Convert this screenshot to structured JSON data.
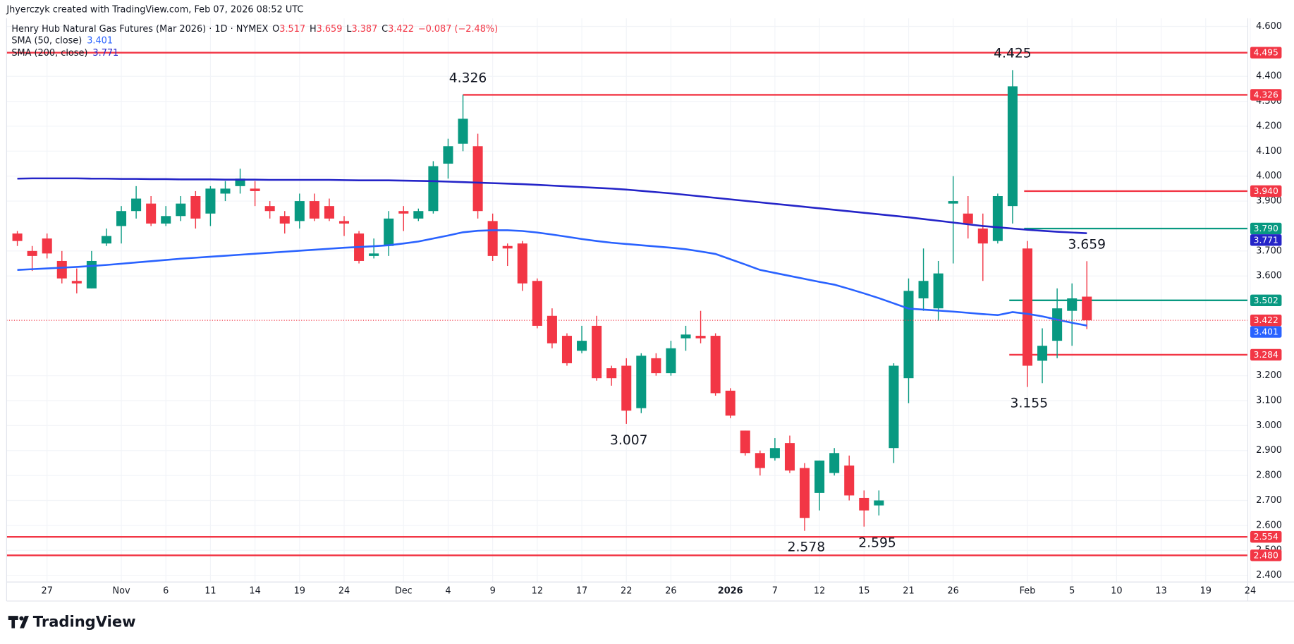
{
  "header": {
    "credit": "Jhyerczyk created with TradingView.com, Feb 07, 2026 08:52 UTC"
  },
  "brand": "TradingView",
  "chart_data": {
    "type": "candlestick",
    "title": "Henry Hub Natural Gas Futures (Mar 2026) · 1D · NYMEX",
    "ohlc_labels": [
      "O",
      "H",
      "L",
      "C"
    ],
    "change": "−0.087 (−2.48%)",
    "up_color": "#089981",
    "down_color": "#f23645",
    "categories": [
      null,
      null,
      "27",
      null,
      null,
      null,
      null,
      "Nov",
      null,
      null,
      "6",
      null,
      null,
      "11",
      null,
      null,
      "14",
      null,
      null,
      "19",
      null,
      null,
      "24",
      null,
      null,
      null,
      "Dec",
      null,
      null,
      "4",
      null,
      null,
      "9",
      null,
      null,
      "12",
      null,
      null,
      "17",
      null,
      null,
      "22",
      null,
      null,
      "26",
      null,
      null,
      null,
      "2026",
      null,
      null,
      "7",
      null,
      null,
      "12",
      null,
      null,
      "15",
      null,
      null,
      "21",
      null,
      null,
      "26",
      null,
      null,
      null,
      null,
      "Feb",
      null,
      null,
      "5",
      null,
      null,
      "10",
      null,
      null,
      "13",
      null,
      null,
      "19",
      null,
      null,
      "24"
    ],
    "open": [
      3.77,
      3.7,
      3.75,
      3.66,
      3.58,
      3.55,
      3.73,
      3.8,
      3.86,
      3.89,
      3.81,
      3.84,
      3.92,
      3.85,
      3.93,
      3.96,
      3.95,
      3.88,
      3.84,
      3.82,
      3.9,
      3.88,
      3.82,
      3.77,
      3.68,
      3.72,
      3.86,
      3.83,
      3.86,
      4.05,
      4.13,
      4.12,
      3.82,
      3.72,
      3.73,
      3.58,
      3.44,
      3.36,
      3.3,
      3.4,
      3.23,
      3.24,
      3.07,
      3.27,
      3.21,
      3.35,
      3.36,
      3.36,
      3.14,
      2.98,
      2.89,
      2.87,
      2.93,
      2.83,
      2.73,
      2.81,
      2.84,
      2.71,
      2.68,
      2.91,
      3.19,
      3.51,
      3.47,
      3.89,
      3.85,
      3.79,
      3.74,
      3.88,
      3.71,
      3.26,
      3.34,
      3.46,
      3.517,
      null,
      null,
      null,
      null,
      null,
      null,
      null,
      null,
      null,
      null,
      null
    ],
    "high": [
      3.78,
      3.72,
      3.77,
      3.7,
      3.63,
      3.7,
      3.79,
      3.88,
      3.96,
      3.92,
      3.88,
      3.92,
      3.94,
      3.96,
      3.98,
      4.03,
      3.98,
      3.9,
      3.86,
      3.93,
      3.93,
      3.91,
      3.84,
      3.78,
      3.75,
      3.86,
      3.88,
      3.87,
      4.06,
      4.15,
      4.326,
      4.17,
      3.85,
      3.73,
      3.74,
      3.59,
      3.47,
      3.37,
      3.4,
      3.44,
      3.24,
      3.27,
      3.29,
      3.29,
      3.34,
      3.4,
      3.46,
      3.37,
      3.15,
      2.98,
      2.9,
      2.95,
      2.96,
      2.85,
      2.86,
      2.91,
      2.88,
      2.74,
      2.74,
      3.25,
      3.59,
      3.71,
      3.66,
      4.0,
      3.92,
      3.85,
      3.93,
      4.425,
      3.74,
      3.39,
      3.55,
      3.57,
      3.659,
      null,
      null,
      null,
      null,
      null,
      null,
      null,
      null,
      null,
      null,
      null
    ],
    "low": [
      3.72,
      3.62,
      3.67,
      3.57,
      3.53,
      3.55,
      3.72,
      3.73,
      3.83,
      3.8,
      3.8,
      3.82,
      3.79,
      3.8,
      3.9,
      3.93,
      3.88,
      3.83,
      3.77,
      3.79,
      3.82,
      3.82,
      3.76,
      3.65,
      3.67,
      3.68,
      3.78,
      3.82,
      3.85,
      3.99,
      4.1,
      3.83,
      3.66,
      3.64,
      3.54,
      3.39,
      3.31,
      3.24,
      3.29,
      3.18,
      3.16,
      3.007,
      3.05,
      3.2,
      3.2,
      3.3,
      3.33,
      3.12,
      3.03,
      2.88,
      2.8,
      2.86,
      2.81,
      2.578,
      2.66,
      2.8,
      2.7,
      2.595,
      2.64,
      2.85,
      3.09,
      3.46,
      3.42,
      3.65,
      3.75,
      3.58,
      3.73,
      3.81,
      3.155,
      3.17,
      3.27,
      3.32,
      3.387,
      null,
      null,
      null,
      null,
      null,
      null,
      null,
      null,
      null,
      null,
      null
    ],
    "close": [
      3.74,
      3.68,
      3.69,
      3.59,
      3.57,
      3.66,
      3.76,
      3.86,
      3.91,
      3.81,
      3.84,
      3.89,
      3.83,
      3.95,
      3.95,
      3.99,
      3.94,
      3.86,
      3.81,
      3.9,
      3.83,
      3.83,
      3.81,
      3.66,
      3.69,
      3.83,
      3.85,
      3.86,
      4.04,
      4.12,
      4.23,
      3.86,
      3.68,
      3.71,
      3.57,
      3.4,
      3.33,
      3.25,
      3.34,
      3.19,
      3.19,
      3.06,
      3.28,
      3.21,
      3.31,
      3.365,
      3.35,
      3.13,
      3.04,
      2.89,
      2.83,
      2.91,
      2.82,
      2.63,
      2.86,
      2.89,
      2.72,
      2.66,
      2.7,
      3.24,
      3.54,
      3.58,
      3.61,
      3.9,
      3.81,
      3.73,
      3.92,
      4.36,
      3.24,
      3.32,
      3.47,
      3.51,
      3.422,
      null,
      null,
      null,
      null,
      null,
      null,
      null,
      null,
      null,
      null,
      null
    ],
    "series": [
      {
        "name": "SMA (50, close)",
        "color": "#2962ff",
        "values": [
          3.624,
          3.627,
          3.63,
          3.633,
          3.636,
          3.64,
          3.644,
          3.649,
          3.654,
          3.659,
          3.664,
          3.669,
          3.673,
          3.677,
          3.681,
          3.685,
          3.689,
          3.693,
          3.697,
          3.701,
          3.705,
          3.709,
          3.713,
          3.716,
          3.719,
          3.723,
          3.73,
          3.738,
          3.75,
          3.762,
          3.775,
          3.781,
          3.783,
          3.783,
          3.78,
          3.774,
          3.766,
          3.757,
          3.748,
          3.74,
          3.733,
          3.728,
          3.723,
          3.718,
          3.713,
          3.707,
          3.698,
          3.688,
          3.667,
          3.646,
          3.624,
          3.612,
          3.6,
          3.588,
          3.576,
          3.565,
          3.548,
          3.53,
          3.511,
          3.49,
          3.469,
          3.465,
          3.461,
          3.457,
          3.452,
          3.447,
          3.443,
          3.455,
          3.448,
          3.438,
          3.425,
          3.412,
          3.401,
          null,
          null,
          null,
          null,
          null,
          null,
          null,
          null,
          null,
          null,
          null
        ]
      },
      {
        "name": "SMA (200, close)",
        "color": "#2424c8",
        "values": [
          3.99,
          3.991,
          3.991,
          3.991,
          3.991,
          3.99,
          3.99,
          3.989,
          3.989,
          3.988,
          3.988,
          3.987,
          3.987,
          3.987,
          3.986,
          3.986,
          3.986,
          3.985,
          3.985,
          3.985,
          3.985,
          3.985,
          3.984,
          3.983,
          3.983,
          3.983,
          3.982,
          3.981,
          3.98,
          3.978,
          3.976,
          3.974,
          3.972,
          3.97,
          3.968,
          3.965,
          3.962,
          3.959,
          3.956,
          3.953,
          3.95,
          3.946,
          3.941,
          3.936,
          3.931,
          3.925,
          3.919,
          3.913,
          3.907,
          3.901,
          3.895,
          3.889,
          3.883,
          3.877,
          3.871,
          3.865,
          3.859,
          3.853,
          3.847,
          3.841,
          3.835,
          3.828,
          3.821,
          3.814,
          3.807,
          3.8,
          3.795,
          3.79,
          3.785,
          3.781,
          3.777,
          3.774,
          3.771,
          null,
          null,
          null,
          null,
          null,
          null,
          null,
          null,
          null,
          null,
          null
        ]
      }
    ],
    "levels": [
      {
        "value": 4.495,
        "color": "#f23645"
      },
      {
        "value": 4.326,
        "color": "#f23645"
      },
      {
        "value": 3.94,
        "label": "3.940",
        "color": "#f23645"
      },
      {
        "value": 3.79,
        "label": "3.790",
        "color": "#089981"
      },
      {
        "value": 3.502,
        "color": "#089981"
      },
      {
        "value": 3.284,
        "color": "#f23645"
      },
      {
        "value": 2.554,
        "color": "#f23645"
      },
      {
        "value": 2.48,
        "label": "2.480",
        "color": "#f23645"
      }
    ],
    "ylim": [
      2.373,
      4.633
    ],
    "yticks": [
      {
        "value": 4.6,
        "label": "4.600"
      },
      {
        "value": 4.4,
        "label": "4.400"
      },
      {
        "value": 4.3,
        "label": "4.300"
      },
      {
        "value": 4.2,
        "label": "4.200"
      },
      {
        "value": 4.1,
        "label": "4.100"
      },
      {
        "value": 4.0,
        "label": "4.000"
      },
      {
        "value": 3.9,
        "label": "3.900"
      },
      {
        "value": 3.7,
        "label": "3.700"
      },
      {
        "value": 3.6,
        "label": "3.600"
      },
      {
        "value": 3.2,
        "label": "3.200"
      },
      {
        "value": 3.1,
        "label": "3.100"
      },
      {
        "value": 3.0,
        "label": "3.000"
      },
      {
        "value": 2.9,
        "label": "2.900"
      },
      {
        "value": 2.8,
        "label": "2.800"
      },
      {
        "value": 2.7,
        "label": "2.700"
      },
      {
        "value": 2.6,
        "label": "2.600"
      },
      {
        "value": 2.5,
        "label": "2.500"
      },
      {
        "value": 2.4,
        "label": "2.400"
      }
    ],
    "grid": true
  }
}
